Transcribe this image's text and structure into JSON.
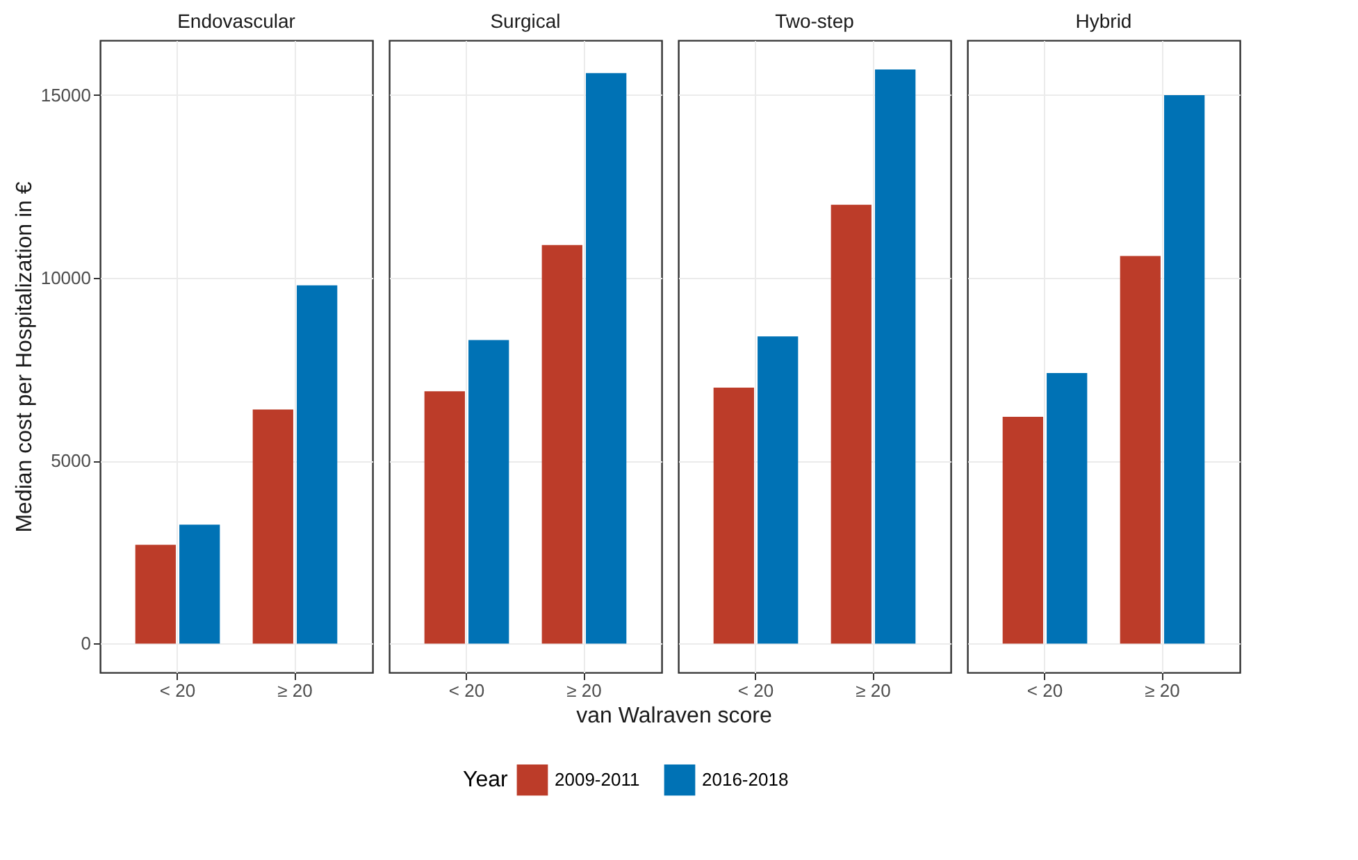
{
  "chart_data": [
    {
      "type": "bar",
      "title": "Endovascular",
      "ylabel": "Median cost per Hospitalization in €",
      "legend_title": "Year",
      "categories": [
        "< 20",
        "≥ 20"
      ],
      "series": [
        {
          "name": "2009-2011",
          "color": "#bc3c29",
          "values": [
            2700,
            6400
          ]
        },
        {
          "name": "2016-2018",
          "color": "#0072b5",
          "values": [
            3250,
            9800
          ]
        }
      ],
      "ylim": [
        -790,
        16500
      ],
      "yticks": [
        0,
        5000,
        10000,
        15000
      ],
      "grid": true,
      "legend": "bottom"
    },
    {
      "type": "bar",
      "title": "Surgical",
      "categories": [
        "< 20",
        "≥ 20"
      ],
      "series": [
        {
          "name": "2009-2011",
          "color": "#bc3c29",
          "values": [
            6900,
            10900
          ]
        },
        {
          "name": "2016-2018",
          "color": "#0072b5",
          "values": [
            8300,
            15600
          ]
        }
      ],
      "ylim": [
        -790,
        16500
      ],
      "yticks": [
        0,
        5000,
        10000,
        15000
      ],
      "grid": true,
      "legend": "bottom",
      "tick_labels": "x"
    },
    {
      "type": "bar",
      "title": "Two-step",
      "categories": [
        "< 20",
        "≥ 20"
      ],
      "series": [
        {
          "name": "2009-2011",
          "color": "#bc3c29",
          "values": [
            7000,
            12000
          ]
        },
        {
          "name": "2016-2018",
          "color": "#0072b5",
          "values": [
            8400,
            15700
          ]
        }
      ],
      "ylim": [
        -790,
        16500
      ],
      "yticks": [
        0,
        5000,
        10000,
        15000
      ],
      "grid": true,
      "legend": "bottom",
      "tick_labels": "x"
    },
    {
      "type": "bar",
      "title": "Hybrid",
      "categories": [
        "< 20",
        "≥ 20"
      ],
      "series": [
        {
          "name": "2009-2011",
          "color": "#bc3c29",
          "values": [
            6200,
            10600
          ]
        },
        {
          "name": "2016-2018",
          "color": "#0072b5",
          "values": [
            7400,
            15000
          ]
        }
      ],
      "ylim": [
        -790,
        16500
      ],
      "yticks": [
        0,
        5000,
        10000,
        15000
      ],
      "grid": true,
      "legend": "bottom",
      "tick_labels": "x"
    },
    {
      "type": "other",
      "annotations": [
        "van Walraven score"
      ]
    }
  ]
}
